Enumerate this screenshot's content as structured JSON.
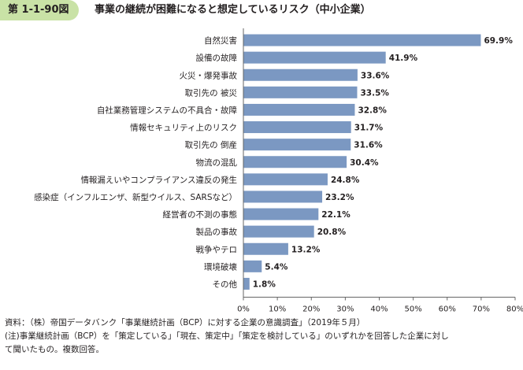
{
  "header": {
    "figure_number": "第 1-1-90図",
    "title": "事業の継続が困難になると想定しているリスク（中小企業）"
  },
  "chart_data": {
    "type": "bar",
    "orientation": "horizontal",
    "categories": [
      "自然災害",
      "設備の故障",
      "火災・爆発事故",
      "取引先の 被災",
      "自社業務管理システムの不具合・故障",
      "情報セキュリティ上のリスク",
      "取引先の 倒産",
      "物流の混乱",
      "情報漏えいやコンプライアンス違反の発生",
      "感染症（インフルエンザ、新型ウイルス、SARSなど）",
      "経営者の不測の事態",
      "製品の事故",
      "戦争やテロ",
      "環境破壊",
      "その他"
    ],
    "values": [
      69.9,
      41.9,
      33.6,
      33.5,
      32.8,
      31.7,
      31.6,
      30.4,
      24.8,
      23.2,
      22.1,
      20.8,
      13.2,
      5.4,
      1.8
    ],
    "value_labels": [
      "69.9%",
      "41.9%",
      "33.6%",
      "33.5%",
      "32.8%",
      "31.7%",
      "31.6%",
      "30.4%",
      "24.8%",
      "23.2%",
      "22.1%",
      "20.8%",
      "13.2%",
      "5.4%",
      "1.8%"
    ],
    "xlim": [
      0,
      80
    ],
    "x_ticks": [
      0,
      10,
      20,
      30,
      40,
      50,
      60,
      70,
      80
    ],
    "x_tick_labels": [
      "0%",
      "10%",
      "20%",
      "30%",
      "40%",
      "50%",
      "60%",
      "70%",
      "80%"
    ],
    "bar_color": "#7b98c2",
    "grid": false
  },
  "notes": {
    "source": "資料：（株）帝国データバンク「事業継続計画（BCP）に対する企業の意識調査」（2019年５月）",
    "note_line1": "(注)事業継続計画（BCP）を「策定している」「現在、策定中」「策定を検討している」のいずれかを回答した企業に対し",
    "note_line2": "て聞いたもの。複数回答。"
  }
}
